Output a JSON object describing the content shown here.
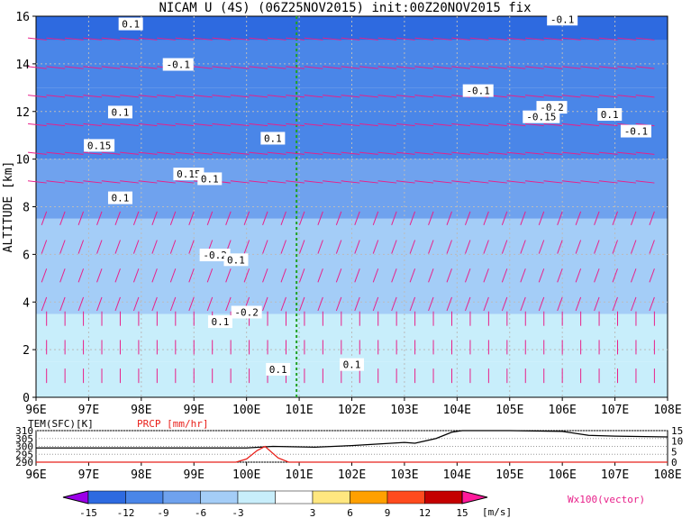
{
  "chart_data": {
    "type": "heatmap",
    "title": "NICAM U (4S) (06Z25NOV2015) init:00Z20NOV2015 fix",
    "main": {
      "xlim": [
        96,
        108
      ],
      "ylim": [
        0,
        16
      ],
      "xticks": [
        "96E",
        "97E",
        "98E",
        "99E",
        "100E",
        "101E",
        "102E",
        "103E",
        "104E",
        "105E",
        "106E",
        "107E",
        "108E"
      ],
      "yticks": [
        "0",
        "2",
        "4",
        "6",
        "8",
        "10",
        "12",
        "14",
        "16"
      ],
      "ylabel": "ALTITUDE [km]",
      "marker_line_lon": 100.95,
      "wind_layers_ms": [
        {
          "z0": 0,
          "z1": 1.5,
          "u": -2
        },
        {
          "z0": 1.5,
          "z1": 3.5,
          "u": 0
        },
        {
          "z0": 3.5,
          "z1": 7.5,
          "u": -4
        },
        {
          "z0": 7.5,
          "z1": 10,
          "u": -7
        },
        {
          "z0": 10,
          "z1": 13,
          "u": -10
        },
        {
          "z0": 13,
          "z1": 15,
          "u": -12
        },
        {
          "z0": 15,
          "z1": 16,
          "u": -15
        }
      ],
      "contour_labels": [
        {
          "text": "0.1",
          "lon": 97.8,
          "z": 15.6
        },
        {
          "text": "-0.1",
          "lon": 98.7,
          "z": 13.9
        },
        {
          "text": "0.1",
          "lon": 97.6,
          "z": 11.9
        },
        {
          "text": "0.15",
          "lon": 97.2,
          "z": 10.5
        },
        {
          "text": "0.1",
          "lon": 100.5,
          "z": 10.8
        },
        {
          "text": "0.15",
          "lon": 98.9,
          "z": 9.3
        },
        {
          "text": "0.1",
          "lon": 99.3,
          "z": 9.1
        },
        {
          "text": "0.1",
          "lon": 97.6,
          "z": 8.3
        },
        {
          "text": "-0.2",
          "lon": 99.4,
          "z": 5.9
        },
        {
          "text": "0.1",
          "lon": 99.8,
          "z": 5.7
        },
        {
          "text": "-0.2",
          "lon": 100.0,
          "z": 3.5
        },
        {
          "text": "0.1",
          "lon": 99.5,
          "z": 3.1
        },
        {
          "text": "0.1",
          "lon": 100.6,
          "z": 1.1
        },
        {
          "text": "0.1",
          "lon": 102.0,
          "z": 1.3
        },
        {
          "text": "-0.1",
          "lon": 104.4,
          "z": 12.8
        },
        {
          "text": "-0.2",
          "lon": 105.8,
          "z": 12.1
        },
        {
          "text": "-0.15",
          "lon": 105.6,
          "z": 11.7
        },
        {
          "text": "0.1",
          "lon": 106.9,
          "z": 11.8
        },
        {
          "text": "-0.1",
          "lon": 107.4,
          "z": 11.1
        },
        {
          "text": "-0.1",
          "lon": 106.0,
          "z": 15.8
        }
      ],
      "colorbar": {
        "levels": [
          "-15",
          "-12",
          "-9",
          "-6",
          "-3",
          "3",
          "6",
          "9",
          "12",
          "15"
        ],
        "colors": [
          "#9b00e8",
          "#2e6ae0",
          "#4a86e8",
          "#6fa2ee",
          "#a4cdf7",
          "#c8eefb",
          "#ffffff",
          "#ffe780",
          "#ffa000",
          "#ff4b1e",
          "#c40000",
          "#ff1a9b"
        ],
        "unit": "[m/s]",
        "vector_label": "Wx100(vector)"
      }
    },
    "sub": {
      "left_label": "TEM(SFC)[K]",
      "right_label": "PRCP [mm/hr]",
      "left_ticks": [
        "290",
        "295",
        "300",
        "305",
        "310"
      ],
      "right_ticks": [
        "0",
        "5",
        "10",
        "15"
      ],
      "left_ylim": [
        290,
        310
      ],
      "right_ylim": [
        0,
        15
      ],
      "xticks": [
        "96E",
        "97E",
        "98E",
        "99E",
        "100E",
        "101E",
        "102E",
        "103E",
        "104E",
        "105E",
        "106E",
        "107E",
        "108E"
      ],
      "tem_series": {
        "x": [
          96,
          98,
          100,
          100.5,
          101.3,
          102,
          102.5,
          103,
          103.2,
          103.4,
          103.6,
          103.9,
          104.1,
          105,
          106,
          106.5,
          107,
          108
        ],
        "y": [
          299,
          299,
          299,
          300,
          299.5,
          300.5,
          301.5,
          302.5,
          302,
          303.5,
          305,
          309,
          310,
          310,
          309.5,
          307,
          306.5,
          306
        ]
      },
      "prcp_series": {
        "x": [
          96,
          99.8,
          100,
          100.2,
          100.35,
          100.6,
          100.8,
          101,
          108
        ],
        "y": [
          0,
          0,
          1.5,
          5.5,
          7.5,
          2,
          0,
          0,
          0
        ]
      }
    }
  }
}
